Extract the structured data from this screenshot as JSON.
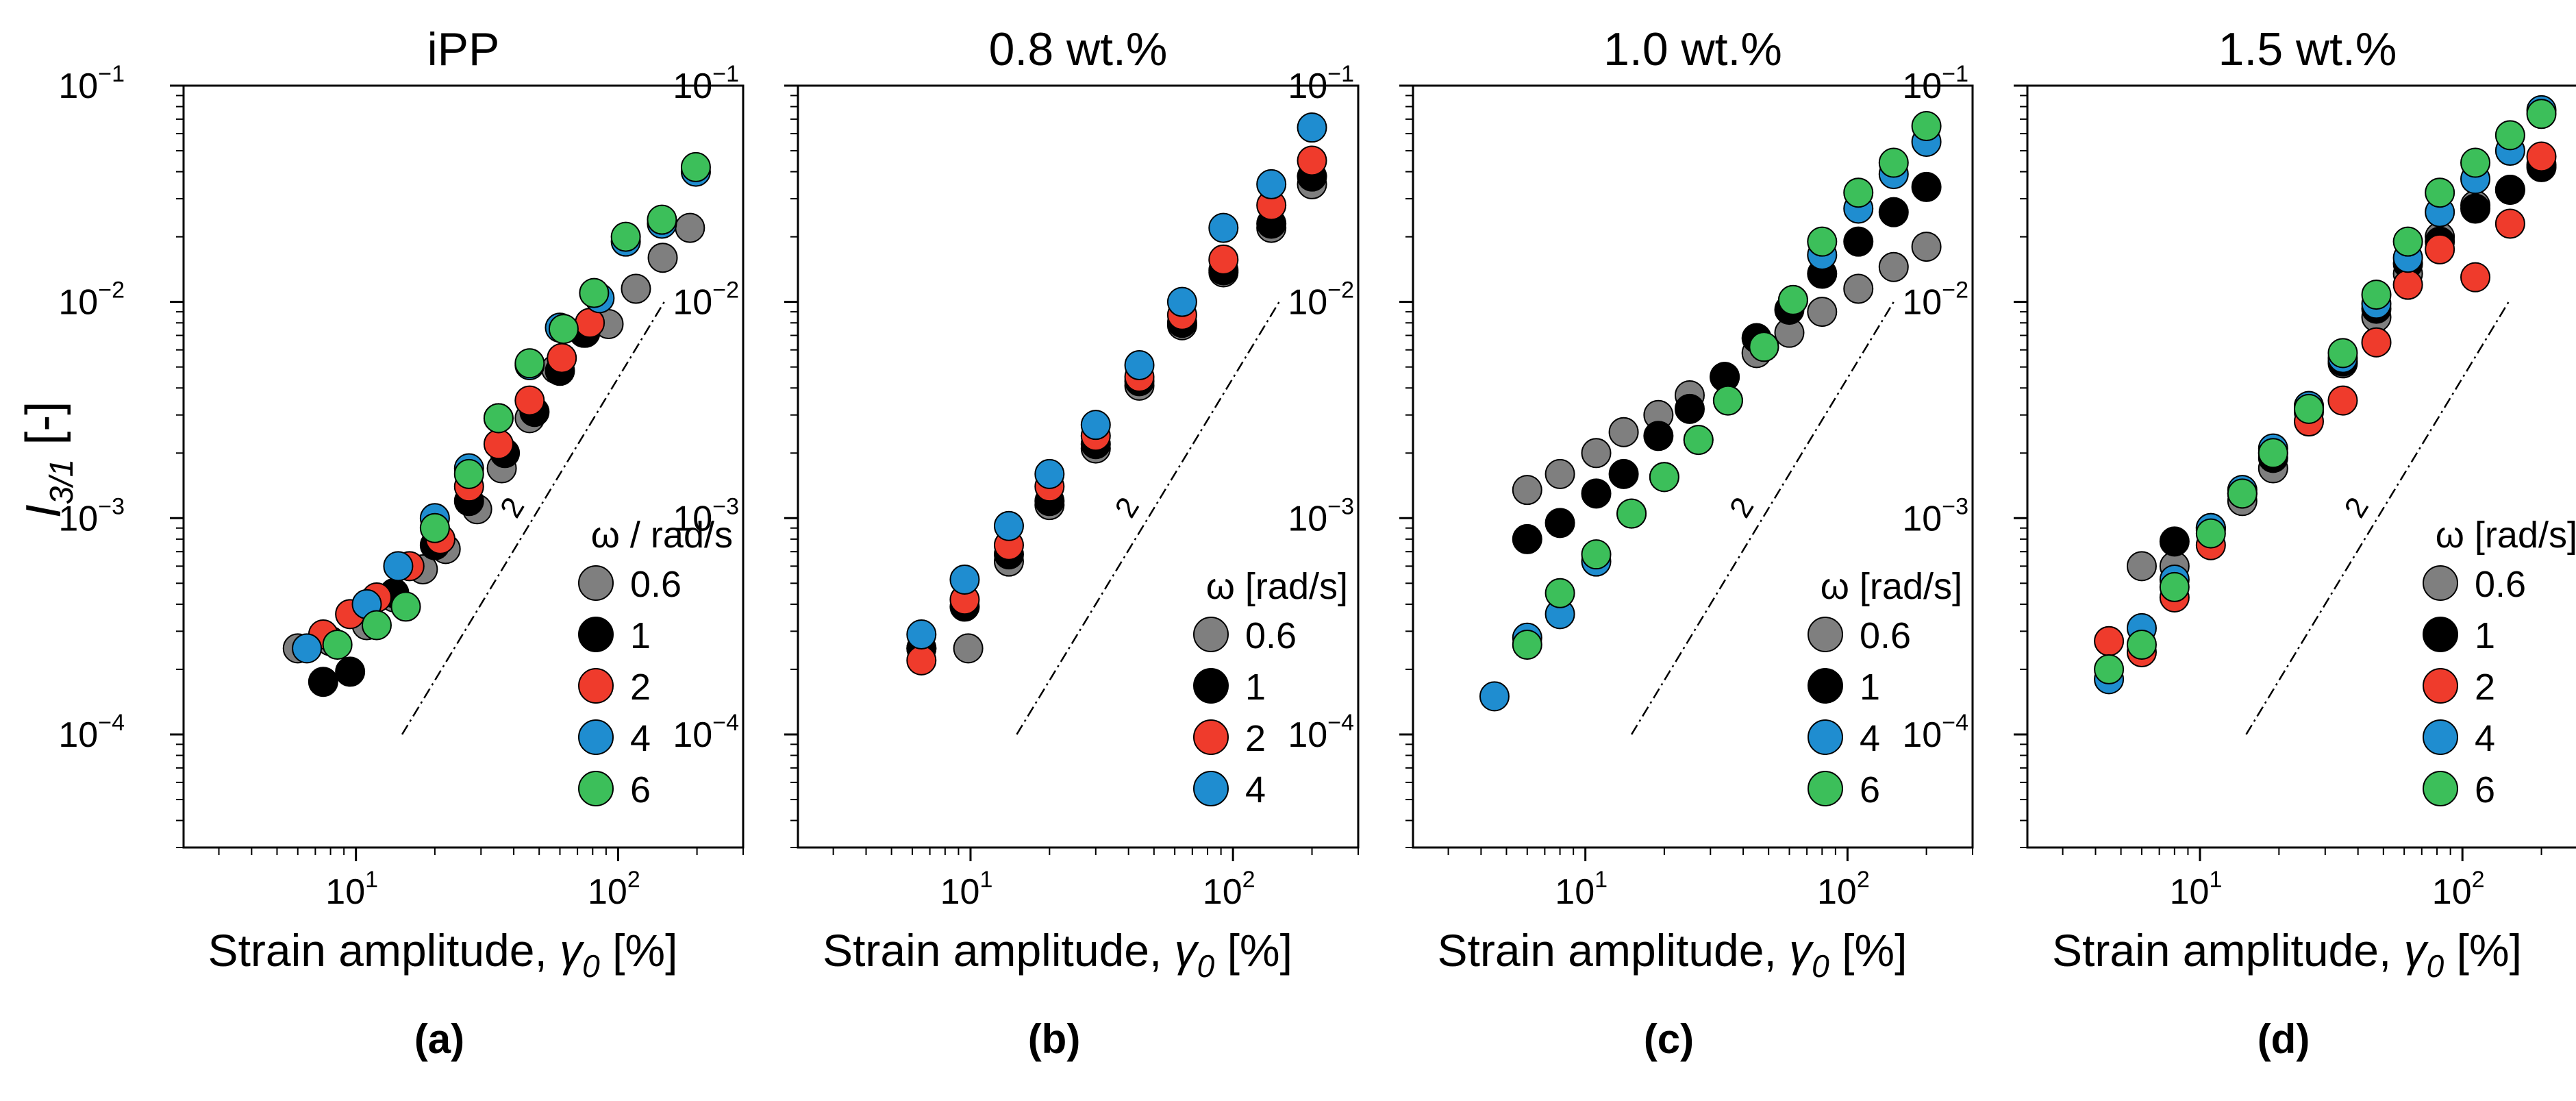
{
  "colors": {
    "0.6": "#7f7f7f",
    "1": "#000000",
    "2": "#ef3b2c",
    "4": "#1f8dd0",
    "6": "#3cbf5a"
  },
  "chart_data": [
    {
      "type": "scatter",
      "panel": "(a)",
      "title": "iPP",
      "xlabel_prefix": "Strain amplitude, ",
      "xlabel_symbol": "γ",
      "xlabel_sub": "0",
      "xlabel_suffix": " [%]",
      "ylabel_main": "I",
      "ylabel_sub": "3/1",
      "ylabel_suffix": " [-]",
      "xscale": "log",
      "yscale": "log",
      "xlim": [
        2.2,
        300
      ],
      "ylim": [
        3e-05,
        0.1
      ],
      "xticks": [
        "10",
        "10"
      ],
      "xtick_exps": [
        "1",
        "2"
      ],
      "yticks": [
        "10",
        "10",
        "10",
        "10"
      ],
      "ytick_exps": [
        "−4",
        "−3",
        "−2",
        "−1"
      ],
      "legend_title": "ω / rad/s",
      "legend_position": "lower-right",
      "slope_label": "2",
      "series": [
        {
          "name": "0.6",
          "x": [
            6,
            8,
            11,
            14,
            18,
            22,
            29,
            36,
            46,
            58,
            74,
            92,
            117,
            148,
            188
          ],
          "y": [
            0.00025,
            0.00027,
            0.00032,
            0.00043,
            0.00058,
            0.00072,
            0.0011,
            0.0017,
            0.0029,
            0.0049,
            0.0072,
            0.0079,
            0.0115,
            0.016,
            0.022
          ]
        },
        {
          "name": "1",
          "x": [
            7.5,
            9.5,
            14,
            20,
            27,
            37,
            48,
            60,
            75
          ],
          "y": [
            0.000175,
            0.000195,
            0.00045,
            0.00075,
            0.0012,
            0.002,
            0.0031,
            0.0048,
            0.0072
          ]
        },
        {
          "name": "2",
          "x": [
            7.5,
            9.5,
            12,
            16,
            21,
            27,
            35,
            46,
            61,
            78
          ],
          "y": [
            0.00029,
            0.00036,
            0.00043,
            0.0006,
            0.0008,
            0.0014,
            0.0022,
            0.0035,
            0.0055,
            0.008
          ]
        },
        {
          "name": "4",
          "x": [
            6.5,
            11,
            14.5,
            20,
            27,
            35,
            46,
            60,
            85,
            107,
            147,
            198
          ],
          "y": [
            0.00025,
            0.0004,
            0.0006,
            0.001,
            0.0017,
            0.0029,
            0.0051,
            0.0076,
            0.0104,
            0.019,
            0.023,
            0.04
          ]
        },
        {
          "name": "6",
          "x": [
            8.5,
            12,
            15.5,
            20,
            27,
            35,
            46,
            62,
            81,
            107,
            147,
            198
          ],
          "y": [
            0.00026,
            0.00032,
            0.00039,
            0.0009,
            0.0016,
            0.0029,
            0.0052,
            0.0075,
            0.011,
            0.02,
            0.024,
            0.042
          ]
        }
      ]
    },
    {
      "type": "scatter",
      "panel": "(b)",
      "title": "0.8 wt.%",
      "xlabel_prefix": "Strain amplitude, ",
      "xlabel_symbol": "γ",
      "xlabel_sub": "0",
      "xlabel_suffix": " [%]",
      "xscale": "log",
      "yscale": "log",
      "xlim": [
        2.2,
        300
      ],
      "ylim": [
        3e-05,
        0.1
      ],
      "xticks": [
        "10",
        "10"
      ],
      "xtick_exps": [
        "1",
        "2"
      ],
      "yticks": [
        "10",
        "10",
        "10",
        "10"
      ],
      "ytick_exps": [
        "−4",
        "−3",
        "−2",
        "−1"
      ],
      "legend_title": "ω [rad/s]",
      "legend_position": "lower-right",
      "slope_label": "2",
      "series": [
        {
          "name": "0.6",
          "x": [
            6.5,
            9.8,
            14,
            20,
            30,
            44,
            64,
            92,
            140,
            200
          ],
          "y": [
            0.00025,
            0.00025,
            0.00063,
            0.00115,
            0.0021,
            0.0041,
            0.0078,
            0.0137,
            0.022,
            0.035
          ]
        },
        {
          "name": "1",
          "x": [
            6.5,
            9.5,
            14,
            20,
            30,
            44,
            64,
            92,
            140,
            200
          ],
          "y": [
            0.00025,
            0.00039,
            0.00068,
            0.0012,
            0.0022,
            0.0043,
            0.008,
            0.014,
            0.023,
            0.038
          ]
        },
        {
          "name": "2",
          "x": [
            6.5,
            9.5,
            14,
            20,
            30,
            44,
            64,
            92,
            140,
            200
          ],
          "y": [
            0.00022,
            0.00042,
            0.00075,
            0.0014,
            0.0024,
            0.0045,
            0.0087,
            0.0157,
            0.028,
            0.045
          ]
        },
        {
          "name": "4",
          "x": [
            6.5,
            9.5,
            14,
            20,
            30,
            44,
            64,
            92,
            140,
            200
          ],
          "y": [
            0.00029,
            0.00052,
            0.00092,
            0.0016,
            0.0027,
            0.0051,
            0.01,
            0.022,
            0.035,
            0.064
          ]
        }
      ]
    },
    {
      "type": "scatter",
      "panel": "(c)",
      "title": "1.0 wt.%",
      "xlabel_prefix": "Strain amplitude, ",
      "xlabel_symbol": "γ",
      "xlabel_sub": "0",
      "xlabel_suffix": " [%]",
      "xscale": "log",
      "yscale": "log",
      "xlim": [
        2.2,
        300
      ],
      "ylim": [
        3e-05,
        0.1
      ],
      "xticks": [
        "10",
        "10"
      ],
      "xtick_exps": [
        "1",
        "2"
      ],
      "yticks": [
        "10",
        "10",
        "10",
        "10"
      ],
      "ytick_exps": [
        "−4",
        "−3",
        "−2",
        "−1"
      ],
      "legend_title": "ω [rad/s]",
      "legend_position": "lower-right",
      "slope_label": "2",
      "series": [
        {
          "name": "0.6",
          "x": [
            6,
            8,
            11,
            14,
            19,
            25,
            34,
            45,
            60,
            80,
            110,
            150,
            200
          ],
          "y": [
            0.00135,
            0.0016,
            0.002,
            0.0025,
            0.003,
            0.0037,
            0.0045,
            0.0058,
            0.0072,
            0.009,
            0.0115,
            0.0145,
            0.018
          ]
        },
        {
          "name": "1",
          "x": [
            6,
            8,
            11,
            14,
            19,
            25,
            34,
            45,
            60,
            80,
            110,
            150,
            200
          ],
          "y": [
            0.0008,
            0.00095,
            0.0013,
            0.0016,
            0.0024,
            0.0032,
            0.0045,
            0.0068,
            0.0092,
            0.0135,
            0.019,
            0.026,
            0.034
          ]
        },
        {
          "name": "4",
          "x": [
            4.5,
            6,
            8,
            11,
            15,
            20,
            27,
            35,
            48,
            62,
            80,
            110,
            150,
            200
          ],
          "y": [
            0.00015,
            0.00028,
            0.00036,
            0.00063,
            0.00105,
            0.00155,
            0.0023,
            0.0035,
            0.0062,
            0.0102,
            0.0165,
            0.027,
            0.039,
            0.055
          ]
        },
        {
          "name": "6",
          "x": [
            6,
            8,
            11,
            15,
            20,
            27,
            35,
            48,
            62,
            80,
            110,
            150,
            200
          ],
          "y": [
            0.00026,
            0.00045,
            0.00068,
            0.00105,
            0.00155,
            0.0023,
            0.0035,
            0.0062,
            0.0102,
            0.019,
            0.032,
            0.044,
            0.065
          ]
        }
      ]
    },
    {
      "type": "scatter",
      "panel": "(d)",
      "title": "1.5 wt.%",
      "xlabel_prefix": "Strain amplitude, ",
      "xlabel_symbol": "γ",
      "xlabel_sub": "0",
      "xlabel_suffix": " [%]",
      "xscale": "log",
      "yscale": "log",
      "xlim": [
        2.2,
        300
      ],
      "ylim": [
        3e-05,
        0.1
      ],
      "xticks": [
        "10",
        "10"
      ],
      "xtick_exps": [
        "1",
        "2"
      ],
      "yticks": [
        "10",
        "10",
        "10",
        "10"
      ],
      "ytick_exps": [
        "−4",
        "−3",
        "−2",
        "−1"
      ],
      "legend_title": "ω [rad/s]",
      "legend_position": "lower-right",
      "slope_label": "2",
      "series": [
        {
          "name": "0.6",
          "x": [
            6,
            8,
            11,
            14.5,
            19,
            26,
            35,
            47,
            62,
            82,
            112,
            152,
            200
          ],
          "y": [
            0.0006,
            0.0006,
            0.0009,
            0.0012,
            0.0017,
            0.0033,
            0.0052,
            0.0085,
            0.0135,
            0.02,
            0.028,
            0.033,
            0.043
          ]
        },
        {
          "name": "1",
          "x": [
            8,
            11,
            14.5,
            19,
            26,
            35,
            47,
            62,
            82,
            112,
            152,
            200
          ],
          "y": [
            0.00078,
            0.00088,
            0.0013,
            0.0019,
            0.0031,
            0.0053,
            0.0093,
            0.015,
            0.019,
            0.027,
            0.033,
            0.042
          ]
        },
        {
          "name": "2",
          "x": [
            4.5,
            6,
            8,
            11,
            14.5,
            19,
            26,
            35,
            47,
            62,
            82,
            112,
            152,
            200
          ],
          "y": [
            0.00027,
            0.00024,
            0.00043,
            0.00075,
            0.0013,
            0.002,
            0.0028,
            0.0035,
            0.0065,
            0.012,
            0.0175,
            0.013,
            0.023,
            0.047
          ]
        },
        {
          "name": "4",
          "x": [
            4.5,
            6,
            8,
            11,
            14.5,
            19,
            26,
            35,
            47,
            62,
            82,
            112,
            152,
            200
          ],
          "y": [
            0.00018,
            0.00031,
            0.00052,
            0.0009,
            0.00135,
            0.0021,
            0.0033,
            0.0055,
            0.0098,
            0.016,
            0.026,
            0.037,
            0.05,
            0.077
          ]
        },
        {
          "name": "6",
          "x": [
            4.5,
            6,
            8,
            11,
            14.5,
            19,
            26,
            35,
            47,
            62,
            82,
            112,
            152,
            200
          ],
          "y": [
            0.0002,
            0.00026,
            0.00048,
            0.00085,
            0.0013,
            0.002,
            0.0032,
            0.0058,
            0.0108,
            0.019,
            0.032,
            0.044,
            0.059,
            0.074
          ]
        }
      ]
    }
  ]
}
